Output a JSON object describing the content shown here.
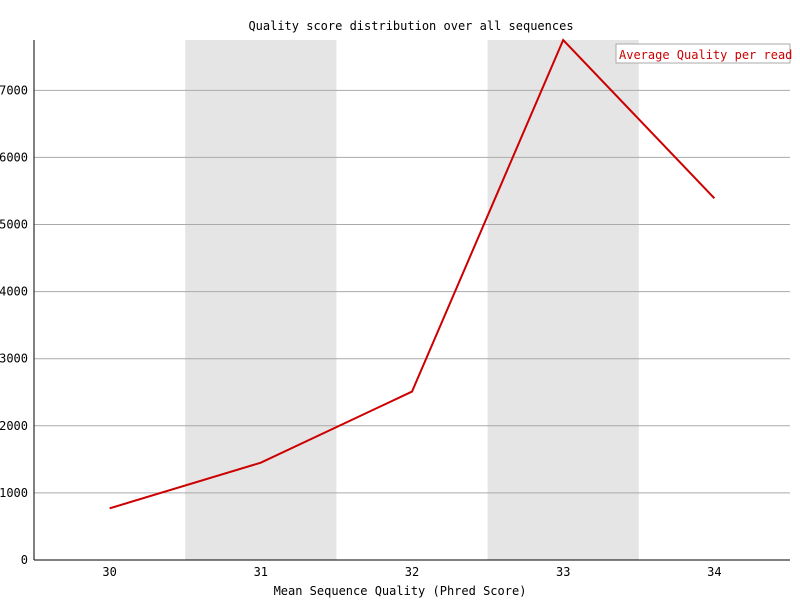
{
  "chart_data": {
    "type": "line",
    "title": "Quality score distribution over all sequences",
    "xlabel": "Mean Sequence Quality (Phred Score)",
    "ylabel": "",
    "categories": [
      "30",
      "31",
      "32",
      "33",
      "34"
    ],
    "series": [
      {
        "name": "Average Quality per read",
        "values": [
          770,
          1450,
          2510,
          7750,
          5390
        ],
        "color": "#cc0000"
      }
    ],
    "ylim": [
      0,
      7750
    ],
    "yticks": [
      "0",
      "1000",
      "2000",
      "3000",
      "4000",
      "5000",
      "6000",
      "7000"
    ],
    "grid": true,
    "alternating_bands": true,
    "band_color": "#e5e5e5",
    "legend_position": "top-right"
  }
}
